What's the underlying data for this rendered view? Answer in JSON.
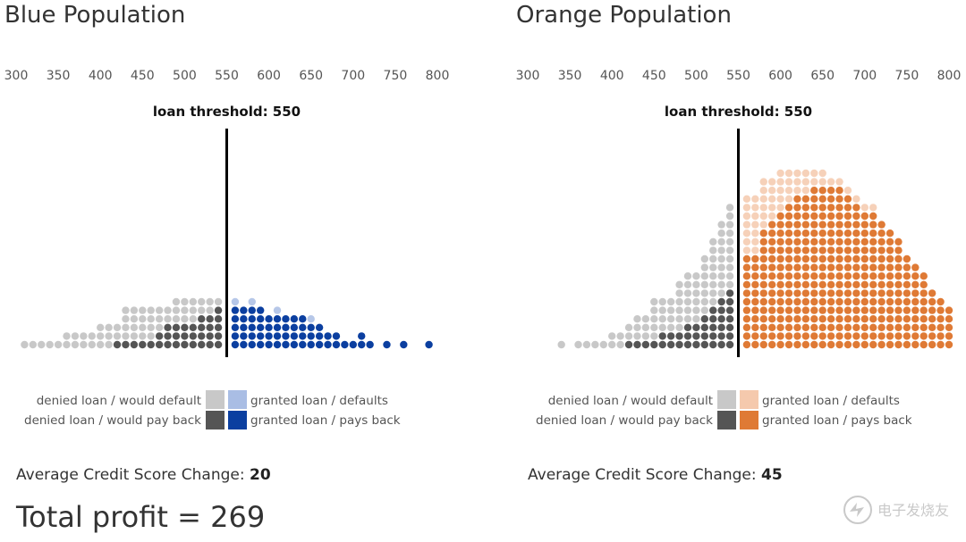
{
  "colors": {
    "denied_default": "#c8c8c8",
    "denied_payback": "#555555",
    "blue_granted_default": "#a9bde4",
    "blue_granted_payback": "#0b3fa0",
    "orange_granted_default": "#f5c9ad",
    "orange_granted_payback": "#df7a35"
  },
  "legend": {
    "denied_default": "denied loan / would default",
    "denied_payback": "denied loan / would pay back",
    "granted_default": "granted loan / defaults",
    "granted_payback_blue": "granted loan / pays back",
    "granted_payback_orange": "granted loan / pays back"
  },
  "panels": [
    {
      "title": "Blue Population",
      "threshold_label": "loan threshold: 550",
      "avg_label": "Average Credit Score Change: ",
      "avg_value": "20"
    },
    {
      "title": "Orange Population",
      "threshold_label": "loan threshold: 550",
      "avg_label": "Average Credit Score Change: ",
      "avg_value": "45"
    }
  ],
  "total_profit": "Total profit = 269",
  "watermark_text": "电子发烧友",
  "chart_data": [
    {
      "type": "scatter",
      "title": "Blue Population",
      "x_ticks": [
        300,
        350,
        400,
        450,
        500,
        550,
        600,
        650,
        700,
        750,
        800
      ],
      "xlim": [
        300,
        800
      ],
      "threshold": 550,
      "bin_width": 10,
      "bins": [
        {
          "x": 310,
          "pay": 0,
          "def": 1
        },
        {
          "x": 320,
          "pay": 0,
          "def": 1
        },
        {
          "x": 330,
          "pay": 0,
          "def": 1
        },
        {
          "x": 340,
          "pay": 0,
          "def": 1
        },
        {
          "x": 350,
          "pay": 0,
          "def": 1
        },
        {
          "x": 360,
          "pay": 0,
          "def": 2
        },
        {
          "x": 370,
          "pay": 0,
          "def": 2
        },
        {
          "x": 380,
          "pay": 0,
          "def": 2
        },
        {
          "x": 390,
          "pay": 0,
          "def": 2
        },
        {
          "x": 400,
          "pay": 0,
          "def": 3
        },
        {
          "x": 410,
          "pay": 0,
          "def": 3
        },
        {
          "x": 420,
          "pay": 1,
          "def": 2
        },
        {
          "x": 430,
          "pay": 1,
          "def": 4
        },
        {
          "x": 440,
          "pay": 1,
          "def": 4
        },
        {
          "x": 450,
          "pay": 1,
          "def": 4
        },
        {
          "x": 460,
          "pay": 1,
          "def": 4
        },
        {
          "x": 470,
          "pay": 2,
          "def": 3
        },
        {
          "x": 480,
          "pay": 3,
          "def": 2
        },
        {
          "x": 490,
          "pay": 3,
          "def": 3
        },
        {
          "x": 500,
          "pay": 3,
          "def": 3
        },
        {
          "x": 510,
          "pay": 3,
          "def": 3
        },
        {
          "x": 520,
          "pay": 4,
          "def": 2
        },
        {
          "x": 530,
          "pay": 4,
          "def": 2
        },
        {
          "x": 540,
          "pay": 5,
          "def": 1
        },
        {
          "x": 560,
          "pay": 5,
          "def": 1
        },
        {
          "x": 570,
          "pay": 5,
          "def": 0
        },
        {
          "x": 580,
          "pay": 5,
          "def": 1
        },
        {
          "x": 590,
          "pay": 5,
          "def": 0
        },
        {
          "x": 600,
          "pay": 4,
          "def": 0
        },
        {
          "x": 610,
          "pay": 4,
          "def": 1
        },
        {
          "x": 620,
          "pay": 4,
          "def": 0
        },
        {
          "x": 630,
          "pay": 4,
          "def": 0
        },
        {
          "x": 640,
          "pay": 4,
          "def": 0
        },
        {
          "x": 650,
          "pay": 3,
          "def": 1
        },
        {
          "x": 660,
          "pay": 3,
          "def": 0
        },
        {
          "x": 670,
          "pay": 2,
          "def": 0
        },
        {
          "x": 680,
          "pay": 2,
          "def": 0
        },
        {
          "x": 690,
          "pay": 1,
          "def": 0
        },
        {
          "x": 700,
          "pay": 1,
          "def": 0
        },
        {
          "x": 710,
          "pay": 2,
          "def": 0
        },
        {
          "x": 720,
          "pay": 1,
          "def": 0
        },
        {
          "x": 740,
          "pay": 1,
          "def": 0
        },
        {
          "x": 760,
          "pay": 1,
          "def": 0
        },
        {
          "x": 790,
          "pay": 1,
          "def": 0
        }
      ]
    },
    {
      "type": "scatter",
      "title": "Orange Population",
      "x_ticks": [
        300,
        350,
        400,
        450,
        500,
        550,
        600,
        650,
        700,
        750,
        800
      ],
      "xlim": [
        300,
        800
      ],
      "threshold": 550,
      "bin_width": 10,
      "bins": [
        {
          "x": 340,
          "pay": 0,
          "def": 1
        },
        {
          "x": 360,
          "pay": 0,
          "def": 1
        },
        {
          "x": 370,
          "pay": 0,
          "def": 1
        },
        {
          "x": 380,
          "pay": 0,
          "def": 1
        },
        {
          "x": 390,
          "pay": 0,
          "def": 1
        },
        {
          "x": 400,
          "pay": 0,
          "def": 2
        },
        {
          "x": 410,
          "pay": 0,
          "def": 2
        },
        {
          "x": 420,
          "pay": 1,
          "def": 2
        },
        {
          "x": 430,
          "pay": 1,
          "def": 3
        },
        {
          "x": 440,
          "pay": 1,
          "def": 3
        },
        {
          "x": 450,
          "pay": 1,
          "def": 5
        },
        {
          "x": 460,
          "pay": 2,
          "def": 4
        },
        {
          "x": 470,
          "pay": 2,
          "def": 4
        },
        {
          "x": 480,
          "pay": 2,
          "def": 6
        },
        {
          "x": 490,
          "pay": 3,
          "def": 6
        },
        {
          "x": 500,
          "pay": 3,
          "def": 6
        },
        {
          "x": 510,
          "pay": 4,
          "def": 7
        },
        {
          "x": 520,
          "pay": 5,
          "def": 8
        },
        {
          "x": 530,
          "pay": 6,
          "def": 9
        },
        {
          "x": 540,
          "pay": 7,
          "def": 10
        },
        {
          "x": 560,
          "pay": 11,
          "def": 7
        },
        {
          "x": 570,
          "pay": 11,
          "def": 7
        },
        {
          "x": 580,
          "pay": 14,
          "def": 6
        },
        {
          "x": 590,
          "pay": 15,
          "def": 5
        },
        {
          "x": 600,
          "pay": 16,
          "def": 5
        },
        {
          "x": 610,
          "pay": 17,
          "def": 4
        },
        {
          "x": 620,
          "pay": 18,
          "def": 3
        },
        {
          "x": 630,
          "pay": 18,
          "def": 3
        },
        {
          "x": 640,
          "pay": 19,
          "def": 2
        },
        {
          "x": 650,
          "pay": 19,
          "def": 2
        },
        {
          "x": 660,
          "pay": 19,
          "def": 1
        },
        {
          "x": 670,
          "pay": 19,
          "def": 1
        },
        {
          "x": 680,
          "pay": 18,
          "def": 1
        },
        {
          "x": 690,
          "pay": 17,
          "def": 1
        },
        {
          "x": 700,
          "pay": 16,
          "def": 1
        },
        {
          "x": 710,
          "pay": 16,
          "def": 1
        },
        {
          "x": 720,
          "pay": 15,
          "def": 0
        },
        {
          "x": 730,
          "pay": 14,
          "def": 0
        },
        {
          "x": 740,
          "pay": 13,
          "def": 0
        },
        {
          "x": 750,
          "pay": 11,
          "def": 0
        },
        {
          "x": 760,
          "pay": 10,
          "def": 0
        },
        {
          "x": 770,
          "pay": 9,
          "def": 0
        },
        {
          "x": 780,
          "pay": 7,
          "def": 0
        },
        {
          "x": 790,
          "pay": 6,
          "def": 0
        },
        {
          "x": 800,
          "pay": 5,
          "def": 0
        }
      ]
    }
  ]
}
